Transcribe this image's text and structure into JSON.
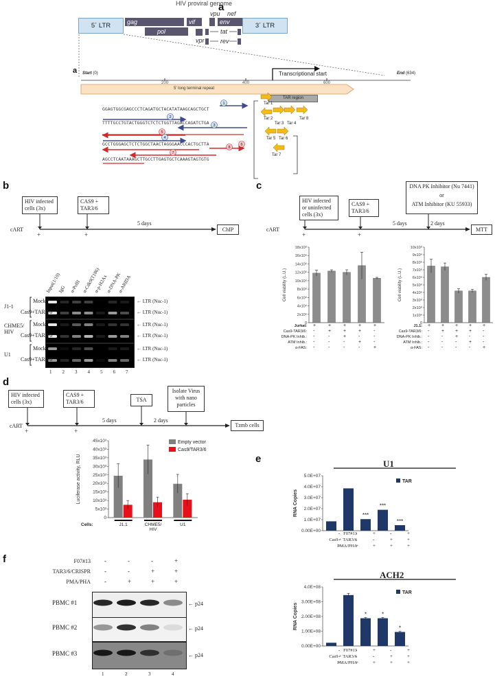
{
  "panel_a": {
    "label": "a",
    "title": "HIV proviral genome",
    "ltr5": "5´ LTR",
    "ltr3": "3´ LTR",
    "genes": {
      "gag": "gag",
      "pol": "pol",
      "vif": "vif",
      "vpr": "vpr",
      "vpu": "vpu",
      "tat": "tat",
      "rev": "rev",
      "env": "env",
      "nef": "nef"
    },
    "label2": "a",
    "start": "Start",
    "start_num": "(0)",
    "end": "End",
    "end_num": "(634)",
    "transcriptional_start": "Transcriptional start",
    "ticks": [
      "200",
      "400",
      "600"
    ],
    "ltr_bar": "5' long terminal repeat",
    "sequence": [
      "GGAGTGGCGAGCCCTCAGATGCTACATATAAGCAGCTGCT",
      "TTTTGCCTGTACTGGGTCTCTCTGGTTAGACCAGATCTGA",
      "GCCTGGGAGCTCTCTGGCTAACTAGGGAACCCACTGCTTA",
      "AGCCTCAATAAAGCTTGCCTTGAGTGCTCAAAGTAGTGTG"
    ],
    "guide_numbers": [
      "1",
      "2",
      "3",
      "4",
      "5",
      "6",
      "7",
      "8"
    ],
    "tar_region": "TAR region",
    "tars": [
      "Tar 1",
      "Tar 2",
      "Tar 3",
      "Tar 4",
      "Tar 8",
      "Tar 5",
      "Tar 6",
      "Tar 7"
    ]
  },
  "panel_b": {
    "label": "b",
    "step1": "HIV infected cells (3x)",
    "step2": "CAS9 + TAR3/6",
    "duration": "5 days",
    "endpoint": "ChIP",
    "cart": "cART",
    "plus": "+",
    "columns": [
      "Input(1/10)",
      "IgG",
      "α-PolII",
      "α-Cdk9(T186)",
      "α-p-H2Ax",
      "α-DNA-PK",
      "α-ARIDA"
    ],
    "cell_lines": [
      "J1-1",
      "CHME5/ HIV",
      "U1"
    ],
    "conditions": [
      "Mock",
      "Cas9+TAR3/6"
    ],
    "band_label": "LTR (Nuc-1)",
    "lanes": [
      "1",
      "2",
      "3",
      "4",
      "5",
      "6",
      "7"
    ]
  },
  "panel_c": {
    "label": "c",
    "step1": "HIV infected or uninfected cells (3x)",
    "step2": "CAS9 + TAR3/6",
    "inhibitor_box": [
      "DNA PK Inhibitor (Nu 7441)",
      "or",
      "ATM Inhibitor (KU 55933)"
    ],
    "d1": "5 days",
    "d2": "2 days",
    "endpoint": "MTT",
    "cart": "cART",
    "plus": "+",
    "ylabel": "Cell viability (L.U.)",
    "left_cell": "Jurkat:",
    "right_cell": "J1.1:",
    "row_labels": [
      "Cas9-TAR3/6:",
      "DNA-PK Inhib.:",
      "ATM Inhib.:",
      "α-FAS:"
    ],
    "left_matrix": [
      [
        "+",
        "+",
        "+",
        "+",
        "+"
      ],
      [
        "-",
        "+",
        "+",
        "+",
        "-"
      ],
      [
        "-",
        "-",
        "+",
        "-",
        "-"
      ],
      [
        "-",
        "-",
        "-",
        "+",
        "-"
      ],
      [
        "-",
        "-",
        "-",
        "-",
        "+"
      ]
    ],
    "right_matrix": [
      [
        "+",
        "+",
        "+",
        "+",
        "+"
      ],
      [
        "-",
        "+",
        "+",
        "+",
        "-"
      ],
      [
        "-",
        "-",
        "+",
        "-",
        "-"
      ],
      [
        "-",
        "-",
        "-",
        "+",
        "-"
      ],
      [
        "-",
        "-",
        "-",
        "-",
        "+"
      ]
    ]
  },
  "panel_d": {
    "label": "d",
    "step1": "HIV infected cells (3x)",
    "step2": "CAS9 + TAR3/6",
    "step3": "TSA",
    "step4": "Isolate Virus with nano particles",
    "d1": "5 days",
    "d2": "2 days",
    "endpoint": "Tzmb cells",
    "cart": "cART",
    "plus": "+",
    "cells_label": "Cells:"
  },
  "panel_e": {
    "label": "e",
    "top_title": "U1",
    "bottom_title": "ACH2",
    "legend": "TAR",
    "ylabel": "RNA Copies",
    "row_labels": [
      "F07#13",
      "Cas9 + TAR3/6",
      "PMA/PHA"
    ],
    "matrix": [
      [
        "-",
        "-",
        "+",
        "-",
        "+"
      ],
      [
        "-",
        "-",
        "-",
        "+",
        "+"
      ],
      [
        "-",
        "+",
        "+",
        "+",
        "+"
      ]
    ],
    "top_stars": [
      "",
      "",
      "***",
      "***",
      "***"
    ],
    "bottom_stars": [
      "",
      "",
      "*",
      "*",
      "*"
    ]
  },
  "panel_f": {
    "label": "f",
    "row_labels": [
      "F07#13",
      "TAR3/6/CRISPR",
      "PMA/PHA"
    ],
    "matrix": [
      [
        "-",
        "-",
        "-",
        "+"
      ],
      [
        "-",
        "-",
        "+",
        "+"
      ],
      [
        "-",
        "+",
        "+",
        "+"
      ]
    ],
    "samples": [
      "PBMC #1",
      "PBMC #2",
      "PBMC #3"
    ],
    "band": "p24",
    "lanes": [
      "1",
      "2",
      "3",
      "4"
    ]
  },
  "chart_data": [
    {
      "type": "bar",
      "ylabel": "Cell viability (L.U.)",
      "categories": [
        "1",
        "2",
        "3",
        "4",
        "5"
      ],
      "values": [
        11800000,
        12300000,
        12000000,
        13600000,
        10600000
      ],
      "errors": [
        700000,
        300000,
        600000,
        3200000,
        200000
      ],
      "ylim": [
        0,
        18000000
      ],
      "yticks": [
        "0",
        "2x10⁶",
        "4x10⁶",
        "6x10⁶",
        "8x10⁶",
        "10x10⁶",
        "12x10⁶",
        "14x10⁶",
        "16x10⁶",
        "18x10⁶"
      ]
    },
    {
      "type": "bar",
      "ylabel": "Cell viability (L.U.)",
      "categories": [
        "1",
        "2",
        "3",
        "4",
        "5"
      ],
      "values": [
        7500000,
        7400000,
        4200000,
        4200000,
        6000000
      ],
      "errors": [
        900000,
        500000,
        300000,
        200000,
        400000
      ],
      "ylim": [
        0,
        10000000
      ],
      "yticks": [
        "0",
        "1x10⁶",
        "2x10⁶",
        "3x10⁶",
        "4x10⁶",
        "5x10⁶",
        "6x10⁶",
        "7x10⁶",
        "8x10⁶",
        "9x10⁶",
        "10x10⁶"
      ]
    },
    {
      "type": "bar",
      "ylabel": "Luciferase activity, RLU",
      "categories": [
        "J1.1",
        "CHME5/ HIV",
        "U1"
      ],
      "series": [
        {
          "name": "Empty vector",
          "values": [
            24500,
            34000,
            19800
          ],
          "errors": [
            7000,
            8500,
            5500
          ],
          "color": "#808080"
        },
        {
          "name": "Cas9/TAR3/6",
          "values": [
            7500,
            9000,
            10500
          ],
          "errors": [
            2500,
            3000,
            3500
          ],
          "color": "#e8101a"
        }
      ],
      "ylim": [
        0,
        45000
      ],
      "yticks": [
        "0",
        "5x10³",
        "10x10³",
        "15x10³",
        "20x10³",
        "25x10³",
        "30x10³",
        "35x10³",
        "40x10³",
        "45x10³"
      ]
    },
    {
      "type": "bar",
      "title": "U1",
      "ylabel": "RNA Copies",
      "categories": [
        "1",
        "2",
        "3",
        "4",
        "5"
      ],
      "series": [
        {
          "name": "TAR",
          "values": [
            8500000,
            38500000,
            10500000,
            19000000,
            5000000
          ],
          "color": "#1f3868"
        }
      ],
      "ylim": [
        0,
        50000000
      ],
      "yticks": [
        "0.00E+00",
        "1.0E+07",
        "2.0E+07",
        "3.0E+07",
        "4.0E+07",
        "5.0E+07"
      ]
    },
    {
      "type": "bar",
      "title": "ACH2",
      "ylabel": "RNA Copies",
      "categories": [
        "1",
        "2",
        "3",
        "4",
        "5"
      ],
      "series": [
        {
          "name": "TAR",
          "values": [
            22000000,
            345000000,
            188000000,
            188000000,
            95000000
          ],
          "errors": [
            0,
            12000000,
            5000000,
            5000000,
            4000000
          ],
          "color": "#1f3868"
        }
      ],
      "ylim": [
        0,
        400000000
      ],
      "yticks": [
        "0.00E+00",
        "1.00E+08",
        "2.00E+08",
        "3.00E+08",
        "4.0E+08"
      ]
    }
  ]
}
